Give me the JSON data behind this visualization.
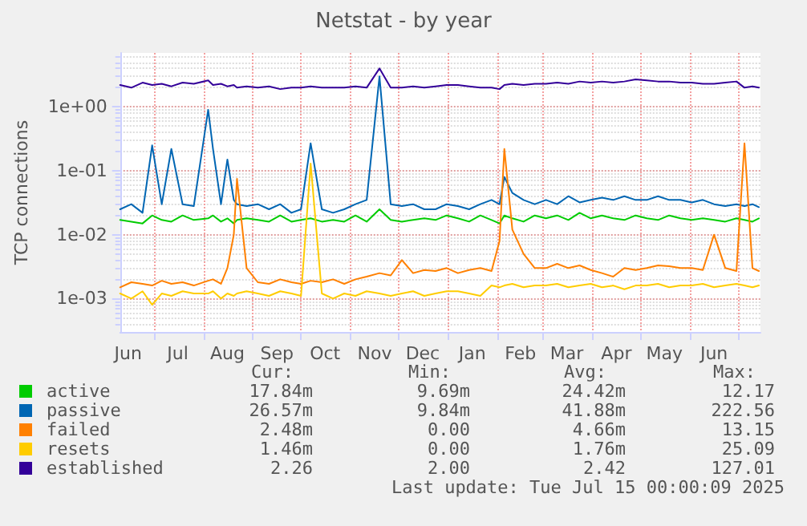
{
  "chart_data": {
    "type": "line",
    "title": "Netstat - by year",
    "ylabel": "TCP connections",
    "log": "y",
    "grid": true,
    "legend": "bottom left",
    "marker": "none",
    "line_style": "solid",
    "ylim": [
      0.0003,
      7
    ],
    "yticks": [
      {
        "value": 0.001,
        "label": "1e-03"
      },
      {
        "value": 0.01,
        "label": "1e-02"
      },
      {
        "value": 0.1,
        "label": "1e-01"
      },
      {
        "value": 1,
        "label": "1e+00"
      }
    ],
    "xlim": [
      "2024-06-10",
      "2025-07-15"
    ],
    "xticks": [
      {
        "value": "2024-06-15",
        "label": "Jun"
      },
      {
        "value": "2024-07-01",
        "label": null
      },
      {
        "value": "2024-07-16",
        "label": "Jul"
      },
      {
        "value": "2024-08-01",
        "label": null
      },
      {
        "value": "2024-08-16",
        "label": "Aug"
      },
      {
        "value": "2024-09-01",
        "label": null
      },
      {
        "value": "2024-09-16",
        "label": "Sep"
      },
      {
        "value": "2024-10-01",
        "label": null
      },
      {
        "value": "2024-10-16",
        "label": "Oct"
      },
      {
        "value": "2024-11-01",
        "label": null
      },
      {
        "value": "2024-11-16",
        "label": "Nov"
      },
      {
        "value": "2024-12-01",
        "label": null
      },
      {
        "value": "2024-12-16",
        "label": "Dec"
      },
      {
        "value": "2025-01-01",
        "label": null
      },
      {
        "value": "2025-01-16",
        "label": "Jan"
      },
      {
        "value": "2025-02-01",
        "label": null
      },
      {
        "value": "2025-02-15",
        "label": "Feb"
      },
      {
        "value": "2025-03-01",
        "label": null
      },
      {
        "value": "2025-03-16",
        "label": "Mar"
      },
      {
        "value": "2025-04-01",
        "label": null
      },
      {
        "value": "2025-04-16",
        "label": "Apr"
      },
      {
        "value": "2025-05-01",
        "label": null
      },
      {
        "value": "2025-05-16",
        "label": "May"
      },
      {
        "value": "2025-06-01",
        "label": null
      },
      {
        "value": "2025-06-16",
        "label": "Jun"
      },
      {
        "value": "2025-07-01",
        "label": null
      }
    ],
    "x": [
      "2024-06-10",
      "2024-06-17",
      "2024-06-24",
      "2024-06-30",
      "2024-07-06",
      "2024-07-12",
      "2024-07-19",
      "2024-07-26",
      "2024-08-04",
      "2024-08-07",
      "2024-08-12",
      "2024-08-16",
      "2024-08-20",
      "2024-08-22",
      "2024-08-28",
      "2024-09-04",
      "2024-09-11",
      "2024-09-18",
      "2024-09-25",
      "2024-10-01",
      "2024-10-07",
      "2024-10-14",
      "2024-10-21",
      "2024-10-28",
      "2024-11-04",
      "2024-11-11",
      "2024-11-19",
      "2024-11-26",
      "2024-12-03",
      "2024-12-10",
      "2024-12-17",
      "2024-12-24",
      "2024-12-31",
      "2025-01-07",
      "2025-01-14",
      "2025-01-21",
      "2025-01-28",
      "2025-02-02",
      "2025-02-05",
      "2025-02-10",
      "2025-02-17",
      "2025-02-24",
      "2025-03-03",
      "2025-03-10",
      "2025-03-17",
      "2025-03-24",
      "2025-03-31",
      "2025-04-07",
      "2025-04-14",
      "2025-04-21",
      "2025-04-28",
      "2025-05-05",
      "2025-05-12",
      "2025-05-19",
      "2025-05-26",
      "2025-06-02",
      "2025-06-09",
      "2025-06-16",
      "2025-06-23",
      "2025-06-30",
      "2025-07-05",
      "2025-07-10",
      "2025-07-14"
    ],
    "series": [
      {
        "name": "active",
        "color": "#00cc00",
        "values": [
          0.017,
          0.016,
          0.015,
          0.02,
          0.017,
          0.016,
          0.02,
          0.017,
          0.018,
          0.02,
          0.016,
          0.018,
          0.015,
          0.017,
          0.018,
          0.017,
          0.016,
          0.02,
          0.016,
          0.017,
          0.018,
          0.016,
          0.017,
          0.016,
          0.02,
          0.016,
          0.025,
          0.017,
          0.016,
          0.017,
          0.018,
          0.017,
          0.02,
          0.018,
          0.016,
          0.02,
          0.017,
          0.015,
          0.02,
          0.018,
          0.016,
          0.02,
          0.018,
          0.02,
          0.017,
          0.022,
          0.018,
          0.02,
          0.018,
          0.017,
          0.02,
          0.018,
          0.017,
          0.02,
          0.018,
          0.017,
          0.018,
          0.017,
          0.016,
          0.018,
          0.017,
          0.016,
          0.018
        ]
      },
      {
        "name": "passive",
        "color": "#0066b3",
        "values": [
          0.025,
          0.03,
          0.022,
          0.25,
          0.03,
          0.22,
          0.03,
          0.028,
          0.9,
          0.22,
          0.03,
          0.15,
          0.035,
          0.03,
          0.028,
          0.03,
          0.025,
          0.03,
          0.022,
          0.025,
          0.27,
          0.025,
          0.022,
          0.025,
          0.03,
          0.035,
          3.0,
          0.03,
          0.028,
          0.03,
          0.025,
          0.025,
          0.03,
          0.028,
          0.025,
          0.03,
          0.035,
          0.03,
          0.08,
          0.045,
          0.035,
          0.03,
          0.035,
          0.03,
          0.04,
          0.032,
          0.035,
          0.038,
          0.035,
          0.04,
          0.035,
          0.035,
          0.04,
          0.035,
          0.035,
          0.032,
          0.035,
          0.03,
          0.028,
          0.03,
          0.028,
          0.03,
          0.027
        ]
      },
      {
        "name": "failed",
        "color": "#ff8000",
        "values": [
          0.0015,
          0.0018,
          0.0017,
          0.0016,
          0.0019,
          0.0017,
          0.0018,
          0.0016,
          0.0019,
          0.002,
          0.0017,
          0.003,
          0.01,
          0.075,
          0.003,
          0.0018,
          0.0017,
          0.002,
          0.0018,
          0.0017,
          0.0019,
          0.0018,
          0.002,
          0.0017,
          0.002,
          0.0022,
          0.0025,
          0.0023,
          0.004,
          0.0025,
          0.0028,
          0.0027,
          0.003,
          0.0025,
          0.0028,
          0.003,
          0.0027,
          0.008,
          0.22,
          0.012,
          0.005,
          0.003,
          0.003,
          0.0035,
          0.003,
          0.0033,
          0.0028,
          0.0025,
          0.0022,
          0.003,
          0.0028,
          0.003,
          0.0033,
          0.0032,
          0.003,
          0.003,
          0.0028,
          0.01,
          0.003,
          0.0027,
          0.27,
          0.003,
          0.0027
        ]
      },
      {
        "name": "resets",
        "color": "#ffcc00",
        "values": [
          0.0012,
          0.001,
          0.0013,
          0.0008,
          0.0012,
          0.0011,
          0.0013,
          0.0012,
          0.0012,
          0.0013,
          0.001,
          0.0012,
          0.0011,
          0.0012,
          0.0013,
          0.0012,
          0.0011,
          0.0013,
          0.0012,
          0.0011,
          0.13,
          0.0012,
          0.001,
          0.0012,
          0.0011,
          0.0013,
          0.0012,
          0.0011,
          0.0012,
          0.0013,
          0.0011,
          0.0012,
          0.0013,
          0.0013,
          0.0012,
          0.0011,
          0.0016,
          0.0015,
          0.0016,
          0.0017,
          0.0015,
          0.0016,
          0.0016,
          0.0017,
          0.0015,
          0.0016,
          0.0017,
          0.0015,
          0.0016,
          0.0014,
          0.0016,
          0.0016,
          0.0017,
          0.0015,
          0.0016,
          0.0016,
          0.0017,
          0.0015,
          0.0016,
          0.0017,
          0.0016,
          0.0015,
          0.0016
        ]
      },
      {
        "name": "established",
        "color": "#330099",
        "values": [
          2.2,
          2.0,
          2.4,
          2.2,
          2.3,
          2.1,
          2.4,
          2.3,
          2.6,
          2.2,
          2.3,
          2.1,
          2.2,
          2.0,
          2.1,
          2.0,
          2.1,
          1.9,
          2.0,
          2.0,
          2.1,
          2.0,
          2.0,
          2.0,
          2.1,
          2.0,
          4.0,
          2.0,
          2.0,
          2.1,
          2.0,
          2.1,
          2.2,
          2.2,
          2.1,
          2.0,
          2.0,
          1.9,
          2.2,
          2.3,
          2.2,
          2.3,
          2.3,
          2.4,
          2.3,
          2.5,
          2.4,
          2.5,
          2.4,
          2.5,
          2.7,
          2.6,
          2.5,
          2.5,
          2.4,
          2.4,
          2.3,
          2.3,
          2.4,
          2.5,
          2.0,
          2.1,
          2.0
        ]
      }
    ],
    "annotations": [
      "Cur:",
      "Min:",
      "Avg:",
      "Max:",
      "17.84m",
      "9.69m",
      "24.42m",
      "12.17",
      "26.57m",
      "9.84m",
      "41.88m",
      "222.56",
      "2.48m",
      "0.00",
      "4.66m",
      "13.15",
      "1.46m",
      "0.00",
      "1.76m",
      "25.09",
      "2.26",
      "2.00",
      "2.42",
      "127.01",
      "Last update: Tue Jul 15 00:00:09 2025"
    ]
  }
}
